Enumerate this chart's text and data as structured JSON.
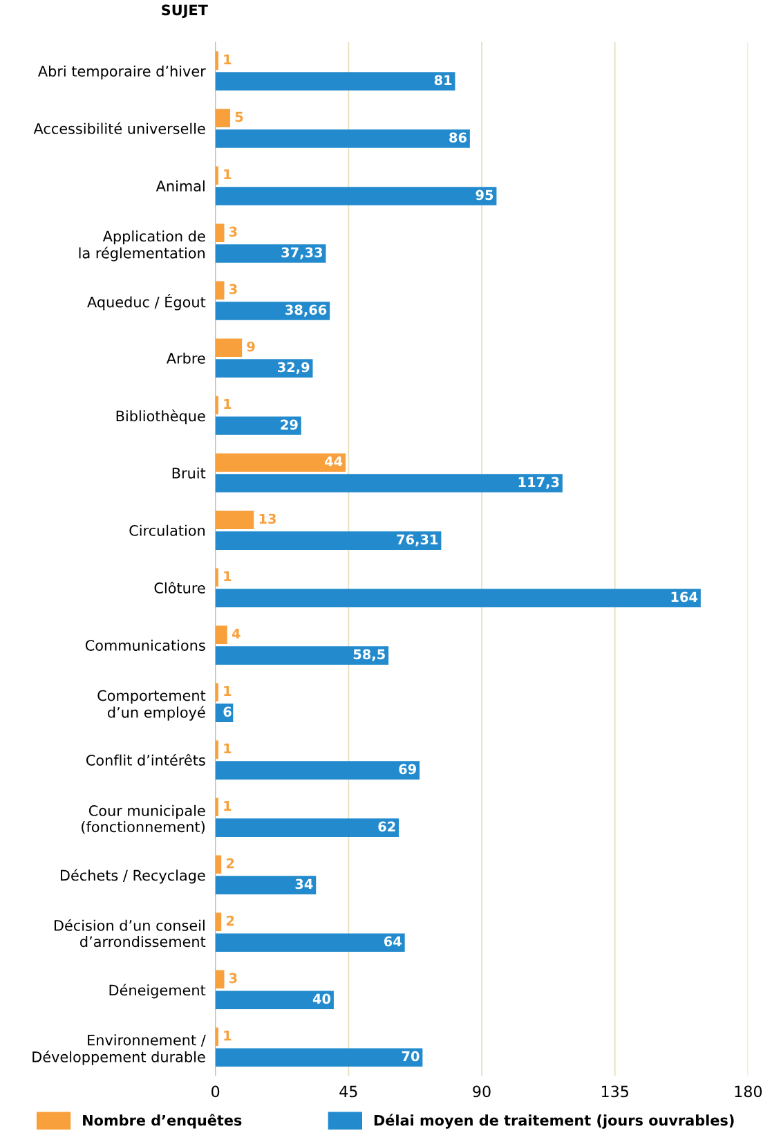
{
  "chart_data": {
    "type": "bar",
    "orientation": "horizontal",
    "ylabel": "SUJET",
    "categories": [
      "Abri temporaire d’hiver",
      "Accessibilité universelle",
      "Animal",
      "Application de\nla réglementation",
      "Aqueduc / Égout",
      "Arbre",
      "Bibliothèque",
      "Bruit",
      "Circulation",
      "Clôture",
      "Communications",
      "Comportement\nd’un employé",
      "Conflit d’intérêts",
      "Cour municipale\n(fonctionnement)",
      "Déchets / Recyclage",
      "Décision d’un conseil\nd’arrondissement",
      "Déneigement",
      "Environnement /\nDéveloppement durable"
    ],
    "series": [
      {
        "name": "Nombre d’enquêtes",
        "color": "#f7a03c",
        "values": [
          1,
          5,
          1,
          3,
          3,
          9,
          1,
          44,
          13,
          1,
          4,
          1,
          1,
          1,
          2,
          2,
          3,
          1
        ],
        "value_labels": [
          "1",
          "5",
          "1",
          "3",
          "3",
          "9",
          "1",
          "44",
          "13",
          "1",
          "4",
          "1",
          "1",
          "1",
          "2",
          "2",
          "3",
          "1"
        ]
      },
      {
        "name": "Délai moyen de traitement (jours ouvrables)",
        "color": "#238bcd",
        "values": [
          81,
          86,
          95,
          37.33,
          38.66,
          32.9,
          29,
          117.3,
          76.31,
          164,
          58.5,
          6,
          69,
          62,
          34,
          64,
          40,
          70
        ],
        "value_labels": [
          "81",
          "86",
          "95",
          "37,33",
          "38,66",
          "32,9",
          "29",
          "117,3",
          "76,31",
          "164",
          "58,5",
          "6",
          "69",
          "62",
          "34",
          "64",
          "40",
          "70"
        ]
      }
    ],
    "xlim": [
      0,
      180
    ],
    "xticks": [
      0,
      45,
      90,
      135,
      180
    ],
    "grid": "x",
    "legend": "bottom"
  }
}
